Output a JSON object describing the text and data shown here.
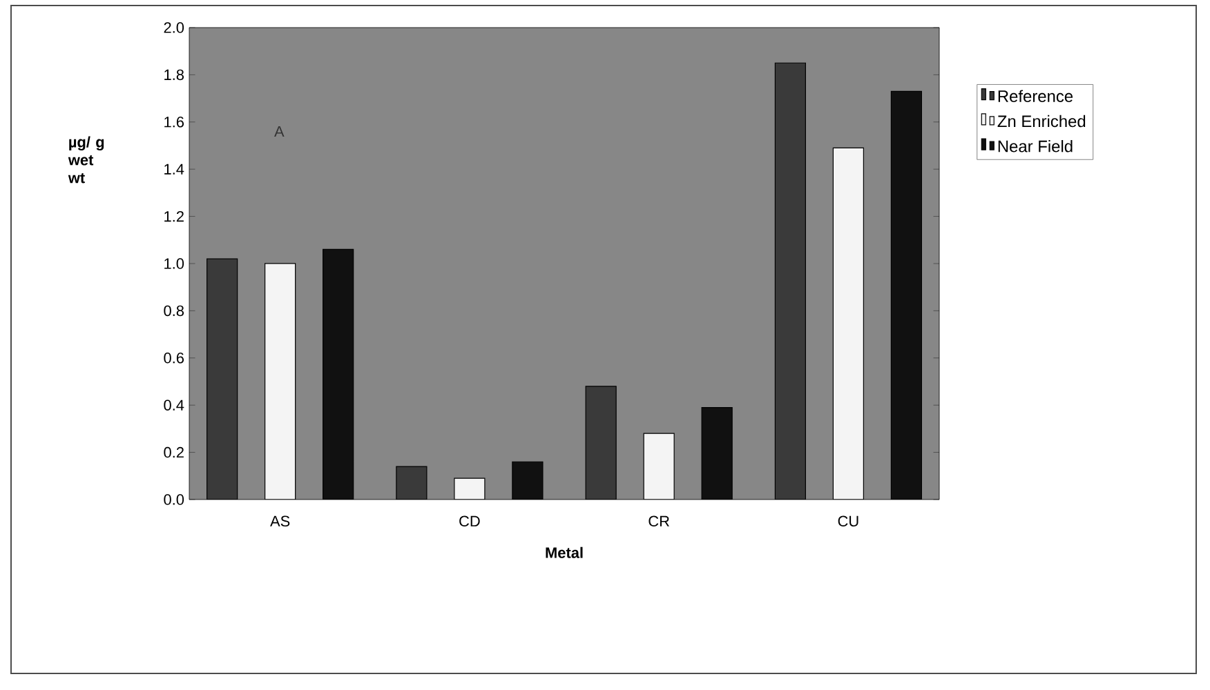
{
  "chart_data": {
    "type": "bar",
    "xlabel": "Metal",
    "ylabel": "µg/ g wet wt",
    "categories": [
      "AS",
      "CD",
      "CR",
      "CU"
    ],
    "series": [
      {
        "name": "Reference",
        "color": "#3a3a3a",
        "values": [
          1.02,
          0.14,
          0.48,
          1.85
        ]
      },
      {
        "name": "Zn Enriched",
        "color": "#f4f4f4",
        "values": [
          1.0,
          0.09,
          0.28,
          1.49
        ]
      },
      {
        "name": "Near Field",
        "color": "#111111",
        "values": [
          1.06,
          0.16,
          0.39,
          1.73
        ]
      }
    ],
    "ylim": [
      0,
      2.0
    ],
    "yticks": [
      {
        "value": 0,
        "label": "0.0"
      },
      {
        "value": 0.2,
        "label": "0.2"
      },
      {
        "value": 0.4,
        "label": "0.4"
      },
      {
        "value": 0.6,
        "label": "0.6"
      },
      {
        "value": 0.8,
        "label": "0.8"
      },
      {
        "value": 1.0,
        "label": "1.0"
      },
      {
        "value": 1.2,
        "label": "1.2"
      },
      {
        "value": 1.4,
        "label": "1.4"
      },
      {
        "value": 1.6,
        "label": "1.6"
      },
      {
        "value": 1.8,
        "label": "1.8"
      },
      {
        "value": 2.0,
        "label": "2.0"
      }
    ],
    "legend": "right",
    "annotations": [
      "A"
    ]
  }
}
